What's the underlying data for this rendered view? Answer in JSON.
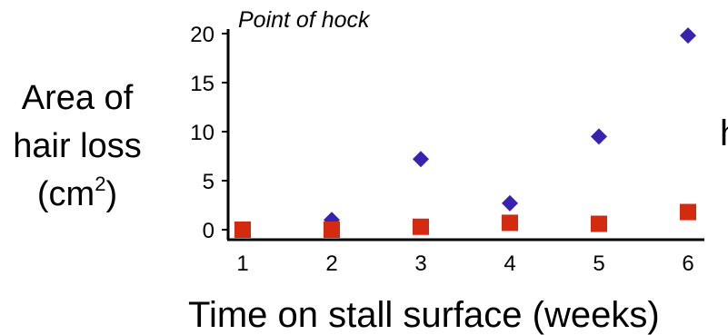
{
  "chart_data": {
    "type": "scatter",
    "title": "Point of hock",
    "ylabel_lines": [
      "Area of",
      "hair loss",
      "(cm",
      "2",
      ")"
    ],
    "xlabel": "Time on stall surface (weeks)",
    "cut_off_text": "h",
    "x_ticks": [
      "1",
      "2",
      "3",
      "4",
      "5",
      "6"
    ],
    "y_ticks": [
      "0",
      "5",
      "10",
      "15",
      "20"
    ],
    "xlim": [
      1,
      6
    ],
    "ylim": [
      0,
      20
    ],
    "legend": "none",
    "grid": false,
    "series": [
      {
        "marker": "diamond",
        "color": "#3a22b0",
        "points": [
          {
            "x": 2,
            "y": 1.0
          },
          {
            "x": 3,
            "y": 7.2
          },
          {
            "x": 4,
            "y": 2.7
          },
          {
            "x": 5,
            "y": 9.5
          },
          {
            "x": 6,
            "y": 19.8
          }
        ]
      },
      {
        "marker": "square",
        "color": "#d42a10",
        "points": [
          {
            "x": 1,
            "y": 0.0
          },
          {
            "x": 2,
            "y": 0.0
          },
          {
            "x": 3,
            "y": 0.3
          },
          {
            "x": 4,
            "y": 0.7
          },
          {
            "x": 5,
            "y": 0.6
          },
          {
            "x": 6,
            "y": 1.8
          }
        ]
      }
    ]
  }
}
